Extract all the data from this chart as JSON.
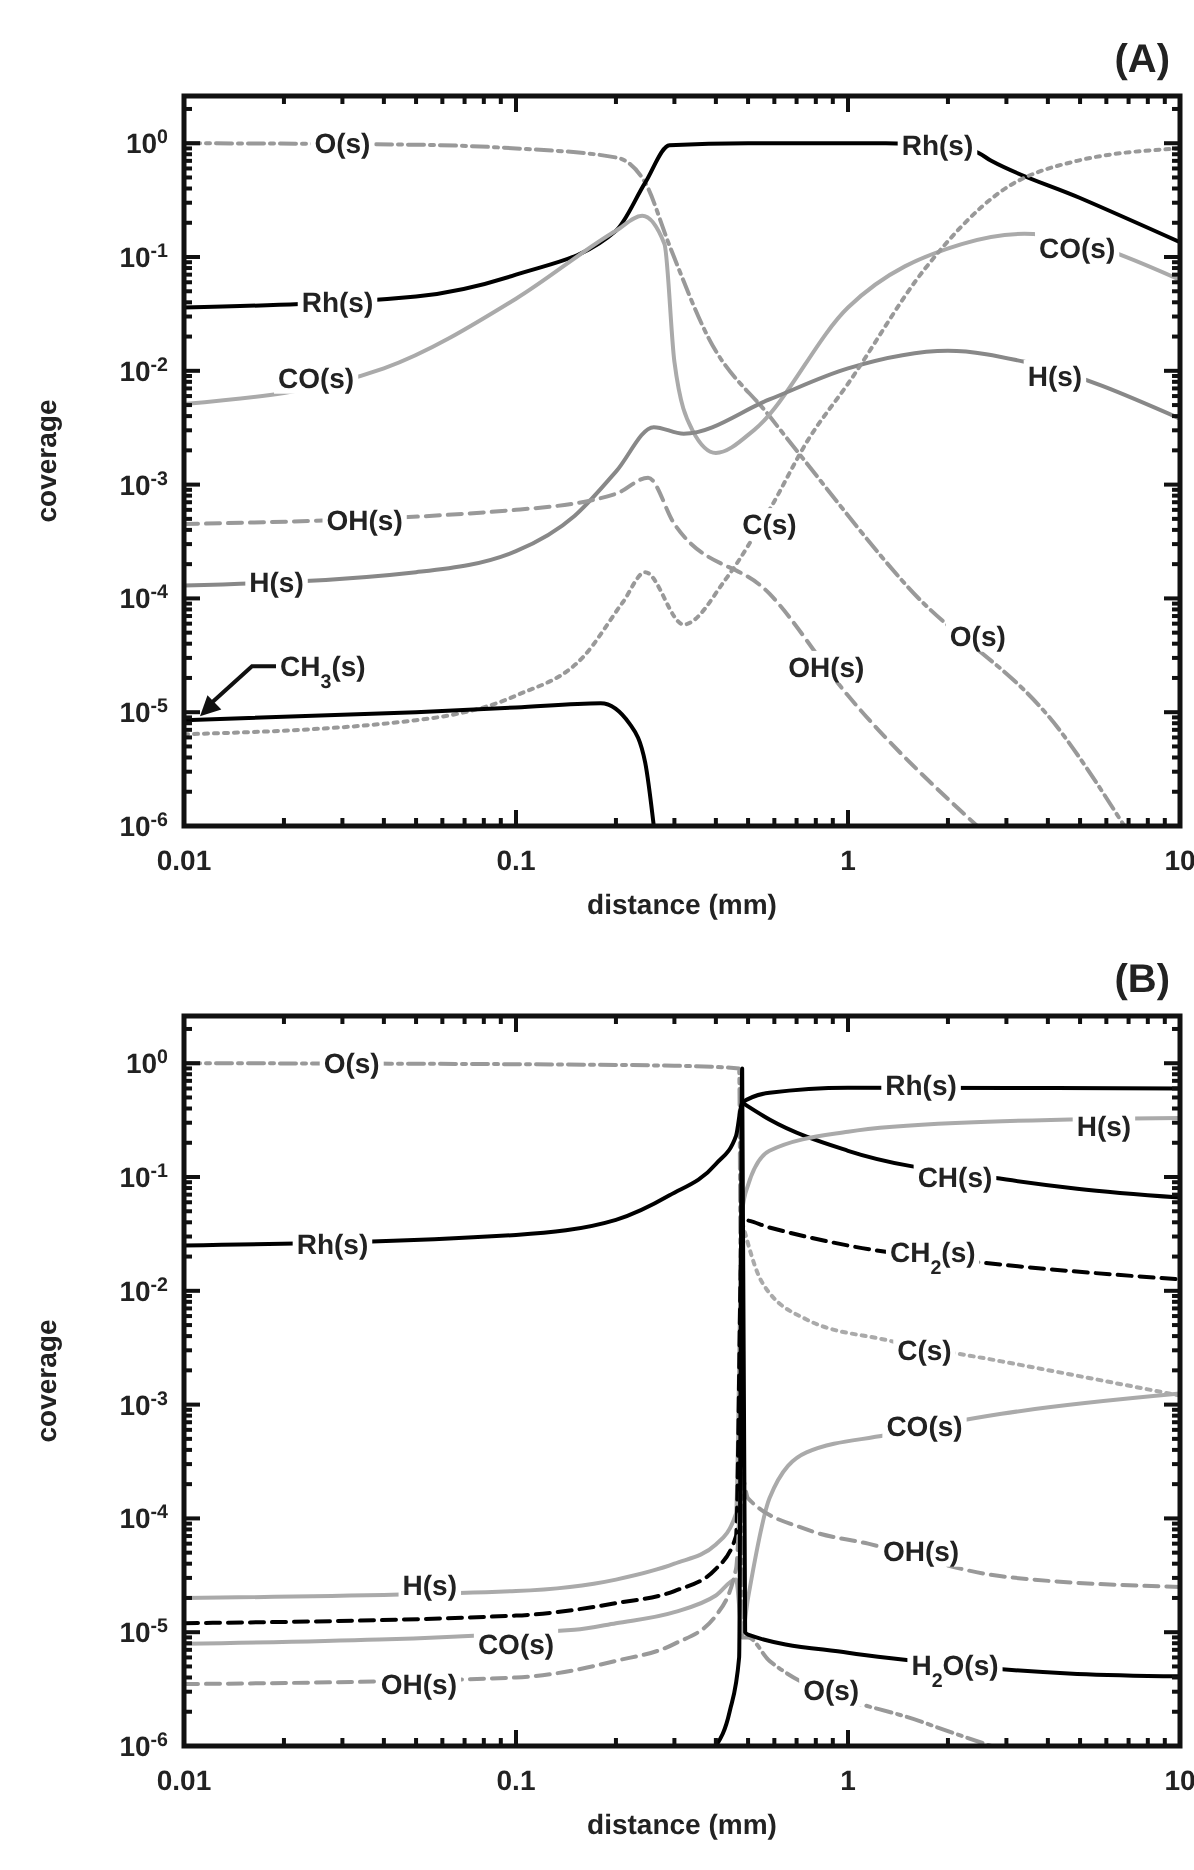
{
  "chart_data": [
    {
      "type": "line",
      "title": "(A)",
      "xlabel": "distance (mm)",
      "ylabel": "coverage",
      "log": "xy",
      "xlim": [
        0.01,
        10
      ],
      "ylim": [
        1e-06,
        2.6
      ],
      "xticks": [
        0.01,
        {
          "value": 0.02,
          "label": null
        },
        {
          "value": 0.03,
          "label": null
        },
        {
          "value": 0.04,
          "label": null
        },
        {
          "value": 0.05,
          "label": null
        },
        {
          "value": 0.06,
          "label": null
        },
        {
          "value": 0.07,
          "label": null
        },
        {
          "value": 0.08,
          "label": null
        },
        {
          "value": 0.09,
          "label": null
        },
        0.1,
        {
          "value": 0.2,
          "label": null
        },
        {
          "value": 0.3,
          "label": null
        },
        {
          "value": 0.4,
          "label": null
        },
        {
          "value": 0.5,
          "label": null
        },
        {
          "value": 0.6,
          "label": null
        },
        {
          "value": 0.7,
          "label": null
        },
        {
          "value": 0.8,
          "label": null
        },
        {
          "value": 0.9,
          "label": null
        },
        1,
        {
          "value": 2,
          "label": null
        },
        {
          "value": 3,
          "label": null
        },
        {
          "value": 4,
          "label": null
        },
        {
          "value": 5,
          "label": null
        },
        {
          "value": 6,
          "label": null
        },
        {
          "value": 7,
          "label": null
        },
        {
          "value": 8,
          "label": null
        },
        {
          "value": 9,
          "label": null
        },
        10
      ],
      "yticks": [
        {
          "value": 1e-06,
          "label": "10$^{-6}$"
        },
        {
          "value": 2e-06,
          "label": null
        },
        {
          "value": 3e-06,
          "label": null
        },
        {
          "value": 4e-06,
          "label": null
        },
        {
          "value": 5e-06,
          "label": null
        },
        {
          "value": 6e-06,
          "label": null
        },
        {
          "value": 7e-06,
          "label": null
        },
        {
          "value": 8e-06,
          "label": null
        },
        {
          "value": 9e-06,
          "label": null
        },
        {
          "value": 1e-05,
          "label": "10$^{-5}$"
        },
        {
          "value": 2e-05,
          "label": null
        },
        {
          "value": 3e-05,
          "label": null
        },
        {
          "value": 4e-05,
          "label": null
        },
        {
          "value": 5e-05,
          "label": null
        },
        {
          "value": 6e-05,
          "label": null
        },
        {
          "value": 7e-05,
          "label": null
        },
        {
          "value": 8e-05,
          "label": null
        },
        {
          "value": 9e-05,
          "label": null
        },
        {
          "value": 0.0001,
          "label": "10$^{-4}$"
        },
        {
          "value": 0.0002,
          "label": null
        },
        {
          "value": 0.0003,
          "label": null
        },
        {
          "value": 0.0004,
          "label": null
        },
        {
          "value": 0.0005,
          "label": null
        },
        {
          "value": 0.0006,
          "label": null
        },
        {
          "value": 0.0007,
          "label": null
        },
        {
          "value": 0.0008,
          "label": null
        },
        {
          "value": 0.0009,
          "label": null
        },
        {
          "value": 0.001,
          "label": "10$^{-3}$"
        },
        {
          "value": 0.002,
          "label": null
        },
        {
          "value": 0.003,
          "label": null
        },
        {
          "value": 0.004,
          "label": null
        },
        {
          "value": 0.005,
          "label": null
        },
        {
          "value": 0.006,
          "label": null
        },
        {
          "value": 0.007,
          "label": null
        },
        {
          "value": 0.008,
          "label": null
        },
        {
          "value": 0.009,
          "label": null
        },
        {
          "value": 0.01,
          "label": "10$^{-2}$"
        },
        {
          "value": 0.02,
          "label": null
        },
        {
          "value": 0.03,
          "label": null
        },
        {
          "value": 0.04,
          "label": null
        },
        {
          "value": 0.05,
          "label": null
        },
        {
          "value": 0.06,
          "label": null
        },
        {
          "value": 0.07,
          "label": null
        },
        {
          "value": 0.08,
          "label": null
        },
        {
          "value": 0.09,
          "label": null
        },
        {
          "value": 0.1,
          "label": "10$^{-1}$"
        },
        {
          "value": 0.2,
          "label": null
        },
        {
          "value": 0.3,
          "label": null
        },
        {
          "value": 0.4,
          "label": null
        },
        {
          "value": 0.5,
          "label": null
        },
        {
          "value": 0.6,
          "label": null
        },
        {
          "value": 0.7,
          "label": null
        },
        {
          "value": 0.8,
          "label": null
        },
        {
          "value": 0.9,
          "label": null
        },
        {
          "value": 1,
          "label": "10$^{0}$"
        },
        {
          "value": 2,
          "label": null
        }
      ],
      "series": [
        {
          "color": "#999999",
          "line_style": "dashdot",
          "x": [
            0.01,
            0.05,
            0.1,
            0.2,
            0.245,
            0.29,
            0.38,
            0.58,
            0.72,
            1.5,
            4.4,
            6.8
          ],
          "values": [
            1.0,
            0.97,
            0.9,
            0.75,
            0.45,
            0.126,
            0.0195,
            0.004,
            0.0018,
            0.00013,
            6.6e-06,
            1e-06
          ]
        },
        {
          "color": "#000000",
          "line_style": "solid",
          "x": [
            0.01,
            0.05,
            0.1,
            0.2,
            0.245,
            0.29,
            0.5,
            1.3,
            2.4,
            2.7,
            5,
            10
          ],
          "values": [
            0.036,
            0.045,
            0.07,
            0.17,
            0.45,
            0.96,
            1.0,
            1.0,
            0.85,
            0.7,
            0.33,
            0.135
          ]
        },
        {
          "color": "#aaaaaa",
          "line_style": "solid",
          "x": [
            0.01,
            0.04,
            0.1,
            0.2,
            0.24,
            0.28,
            0.3,
            0.34,
            0.4,
            0.52,
            1.0,
            2.2,
            3.4,
            10
          ],
          "values": [
            0.0051,
            0.0105,
            0.043,
            0.17,
            0.23,
            0.13,
            0.012,
            0.003,
            0.0019,
            0.003,
            0.036,
            0.13,
            0.16,
            0.063
          ]
        },
        {
          "color": "#888888",
          "line_style": "solid",
          "x": [
            0.01,
            0.05,
            0.1,
            0.15,
            0.2,
            0.26,
            0.32,
            0.58,
            1.0,
            2.0,
            3.4,
            10
          ],
          "values": [
            0.00013,
            0.00017,
            0.00026,
            0.00053,
            0.0013,
            0.0032,
            0.0028,
            0.0056,
            0.0105,
            0.015,
            0.012,
            0.0038
          ]
        },
        {
          "color": "#999999",
          "line_style": "dashed",
          "x": [
            0.01,
            0.1,
            0.2,
            0.25,
            0.3,
            0.58,
            1.0,
            2.45
          ],
          "values": [
            0.00045,
            0.0006,
            0.00083,
            0.00115,
            0.00045,
            0.00011,
            1.4e-05,
            1e-06
          ]
        },
        {
          "color": "#999999",
          "line_style": "dotted",
          "x": [
            0.01,
            0.05,
            0.1,
            0.16,
            0.21,
            0.245,
            0.32,
            0.43,
            0.58,
            0.76,
            1.0,
            1.7,
            2.9,
            4.9,
            10
          ],
          "values": [
            6.4e-06,
            8.5e-06,
            1.4e-05,
            3.1e-05,
            9.3e-05,
            0.00017,
            5.9e-05,
            0.00015,
            0.0006,
            0.0025,
            0.0077,
            0.078,
            0.38,
            0.7,
            0.9
          ]
        },
        {
          "name": "CH$_{3}$(s)",
          "color": "#000000",
          "line_style": "solid",
          "x": [
            0.01,
            0.05,
            0.1,
            0.18,
            0.22,
            0.245,
            0.26
          ],
          "values": [
            8.5e-06,
            1e-05,
            1.1e-05,
            1.2e-05,
            7.9e-06,
            3.6e-06,
            1e-06
          ]
        }
      ],
      "annotations": [
        {
          "text": "O(s)",
          "x": 0.03,
          "y": 1.0
        },
        {
          "text": "Rh(s)",
          "x": 1.86,
          "y": 0.97
        },
        {
          "text": "Rh(s)",
          "x": 0.029,
          "y": 0.04
        },
        {
          "text": "CO(s)",
          "x": 0.025,
          "y": 0.0087
        },
        {
          "text": "CO(s)",
          "x": 4.9,
          "y": 0.12
        },
        {
          "text": "H(s)",
          "x": 4.2,
          "y": 0.009
        },
        {
          "text": "OH(s)",
          "x": 0.035,
          "y": 0.00049
        },
        {
          "text": "H(s)",
          "x": 0.019,
          "y": 0.00014
        },
        {
          "text": "C(s)",
          "x": 0.58,
          "y": 0.00045
        },
        {
          "text": "OH(s)",
          "x": 0.86,
          "y": 2.5e-05
        },
        {
          "text": "O(s)",
          "x": 2.46,
          "y": 4.7e-05
        }
      ]
    },
    {
      "type": "line",
      "title": "(B)",
      "xlabel": "distance (mm)",
      "ylabel": "coverage",
      "log": "xy",
      "xlim": [
        0.01,
        10
      ],
      "ylim": [
        1e-06,
        2.6
      ],
      "xticks": [
        0.01,
        {
          "value": 0.02,
          "label": null
        },
        {
          "value": 0.03,
          "label": null
        },
        {
          "value": 0.04,
          "label": null
        },
        {
          "value": 0.05,
          "label": null
        },
        {
          "value": 0.06,
          "label": null
        },
        {
          "value": 0.07,
          "label": null
        },
        {
          "value": 0.08,
          "label": null
        },
        {
          "value": 0.09,
          "label": null
        },
        0.1,
        {
          "value": 0.2,
          "label": null
        },
        {
          "value": 0.3,
          "label": null
        },
        {
          "value": 0.4,
          "label": null
        },
        {
          "value": 0.5,
          "label": null
        },
        {
          "value": 0.6,
          "label": null
        },
        {
          "value": 0.7,
          "label": null
        },
        {
          "value": 0.8,
          "label": null
        },
        {
          "value": 0.9,
          "label": null
        },
        1,
        {
          "value": 2,
          "label": null
        },
        {
          "value": 3,
          "label": null
        },
        {
          "value": 4,
          "label": null
        },
        {
          "value": 5,
          "label": null
        },
        {
          "value": 6,
          "label": null
        },
        {
          "value": 7,
          "label": null
        },
        {
          "value": 8,
          "label": null
        },
        {
          "value": 9,
          "label": null
        },
        10
      ],
      "yticks": [
        {
          "value": 1e-06,
          "label": "10$^{-6}$"
        },
        {
          "value": 2e-06,
          "label": null
        },
        {
          "value": 3e-06,
          "label": null
        },
        {
          "value": 4e-06,
          "label": null
        },
        {
          "value": 5e-06,
          "label": null
        },
        {
          "value": 6e-06,
          "label": null
        },
        {
          "value": 7e-06,
          "label": null
        },
        {
          "value": 8e-06,
          "label": null
        },
        {
          "value": 9e-06,
          "label": null
        },
        {
          "value": 1e-05,
          "label": "10$^{-5}$"
        },
        {
          "value": 2e-05,
          "label": null
        },
        {
          "value": 3e-05,
          "label": null
        },
        {
          "value": 4e-05,
          "label": null
        },
        {
          "value": 5e-05,
          "label": null
        },
        {
          "value": 6e-05,
          "label": null
        },
        {
          "value": 7e-05,
          "label": null
        },
        {
          "value": 8e-05,
          "label": null
        },
        {
          "value": 9e-05,
          "label": null
        },
        {
          "value": 0.0001,
          "label": "10$^{-4}$"
        },
        {
          "value": 0.0002,
          "label": null
        },
        {
          "value": 0.0003,
          "label": null
        },
        {
          "value": 0.0004,
          "label": null
        },
        {
          "value": 0.0005,
          "label": null
        },
        {
          "value": 0.0006,
          "label": null
        },
        {
          "value": 0.0007,
          "label": null
        },
        {
          "value": 0.0008,
          "label": null
        },
        {
          "value": 0.0009,
          "label": null
        },
        {
          "value": 0.001,
          "label": "10$^{-3}$"
        },
        {
          "value": 0.002,
          "label": null
        },
        {
          "value": 0.003,
          "label": null
        },
        {
          "value": 0.004,
          "label": null
        },
        {
          "value": 0.005,
          "label": null
        },
        {
          "value": 0.006,
          "label": null
        },
        {
          "value": 0.007,
          "label": null
        },
        {
          "value": 0.008,
          "label": null
        },
        {
          "value": 0.009,
          "label": null
        },
        {
          "value": 0.01,
          "label": "10$^{-2}$"
        },
        {
          "value": 0.02,
          "label": null
        },
        {
          "value": 0.03,
          "label": null
        },
        {
          "value": 0.04,
          "label": null
        },
        {
          "value": 0.05,
          "label": null
        },
        {
          "value": 0.06,
          "label": null
        },
        {
          "value": 0.07,
          "label": null
        },
        {
          "value": 0.08,
          "label": null
        },
        {
          "value": 0.09,
          "label": null
        },
        {
          "value": 0.1,
          "label": "10$^{-1}$"
        },
        {
          "value": 0.2,
          "label": null
        },
        {
          "value": 0.3,
          "label": null
        },
        {
          "value": 0.4,
          "label": null
        },
        {
          "value": 0.5,
          "label": null
        },
        {
          "value": 0.6,
          "label": null
        },
        {
          "value": 0.7,
          "label": null
        },
        {
          "value": 0.8,
          "label": null
        },
        {
          "value": 0.9,
          "label": null
        },
        {
          "value": 1,
          "label": "10$^{0}$"
        },
        {
          "value": 2,
          "label": null
        }
      ],
      "series": [
        {
          "color": "#999999",
          "line_style": "dashdot",
          "x": [
            0.01,
            0.1,
            0.3,
            0.47,
            0.48,
            0.5,
            0.58,
            1.7,
            2.7
          ],
          "values": [
            1.0,
            0.98,
            0.95,
            0.9,
            9e-06,
            9e-06,
            5.6e-06,
            1.6e-06,
            1e-06
          ]
        },
        {
          "color": "#000000",
          "line_style": "solid",
          "x": [
            0.01,
            0.1,
            0.2,
            0.29,
            0.4,
            0.46,
            0.48,
            0.58,
            1.0,
            10
          ],
          "values": [
            0.025,
            0.031,
            0.042,
            0.069,
            0.13,
            0.23,
            0.45,
            0.55,
            0.61,
            0.6
          ]
        },
        {
          "color": "#000000",
          "line_style": "solid",
          "x": [
            0.48,
            0.58,
            1.0,
            3.0,
            4.9,
            10
          ],
          "values": [
            0.45,
            0.32,
            0.17,
            0.095,
            0.079,
            0.066
          ]
        },
        {
          "color": "#aaaaaa",
          "line_style": "solid",
          "x": [
            0.01,
            0.1,
            0.2,
            0.3,
            0.4,
            0.46,
            0.48,
            0.5,
            0.58,
            1.0,
            2.2,
            10
          ],
          "values": [
            2e-05,
            2.3e-05,
            2.9e-05,
            4e-05,
            5.9e-05,
            0.00011,
            0.05,
            0.085,
            0.17,
            0.25,
            0.3,
            0.33
          ]
        },
        {
          "color": "#000000",
          "line_style": "dashed",
          "x": [
            0.01,
            0.1,
            0.2,
            0.3,
            0.4,
            0.46,
            0.48,
            0.58,
            1.0,
            2.9,
            10
          ],
          "values": [
            1.2e-05,
            1.4e-05,
            1.8e-05,
            2.3e-05,
            3.6e-05,
            7e-05,
            0.042,
            0.036,
            0.025,
            0.017,
            0.0126
          ]
        },
        {
          "color": "#aaaaaa",
          "line_style": "dotted",
          "x": [
            0.48,
            0.55,
            0.75,
            1.3,
            2.9,
            10
          ],
          "values": [
            0.04,
            0.012,
            0.0056,
            0.0037,
            0.0024,
            0.0012
          ]
        },
        {
          "color": "#aaaaaa",
          "line_style": "solid",
          "x": [
            0.01,
            0.15,
            0.2,
            0.3,
            0.4,
            0.46,
            0.48,
            0.5,
            0.58,
            0.75,
            1.3,
            2.9,
            10
          ],
          "values": [
            7.9e-06,
            1.05e-05,
            1.2e-05,
            1.5e-05,
            2.1e-05,
            2.9e-05,
            1e-05,
            2e-05,
            0.00015,
            0.00038,
            0.00054,
            0.00083,
            0.00125
          ]
        },
        {
          "color": "#999999",
          "line_style": "dashed",
          "x": [
            0.01,
            0.1,
            0.2,
            0.3,
            0.4,
            0.46,
            0.48,
            0.5,
            0.75,
            1.15,
            2.9,
            10
          ],
          "values": [
            3.5e-06,
            4e-06,
            5.6e-06,
            7.9e-06,
            1.4e-05,
            3.6e-05,
            0.00023,
            0.00015,
            8e-05,
            6e-05,
            3.1e-05,
            2.5e-05
          ]
        },
        {
          "color": "#000000",
          "line_style": "solid",
          "x": [
            0.4,
            0.44,
            0.47,
            0.48,
            0.49,
            0.5,
            1.0,
            1.35,
            4.9,
            10
          ],
          "values": [
            1e-06,
            2e-06,
            6e-06,
            0.9,
            1e-05,
            9.5e-06,
            6.6e-06,
            5.9e-06,
            4.3e-06,
            4.1e-06
          ]
        }
      ],
      "annotations": [
        {
          "text": "O(s)",
          "x": 0.032,
          "y": 1.0
        },
        {
          "text": "Rh(s)",
          "x": 0.028,
          "y": 0.026
        },
        {
          "text": "Rh(s)",
          "x": 1.66,
          "y": 0.64
        },
        {
          "text": "H(s)",
          "x": 5.9,
          "y": 0.28
        },
        {
          "text": "CH(s)",
          "x": 2.1,
          "y": 0.1
        },
        {
          "text": "CH$_{2}$(s)",
          "x": 1.8,
          "y": 0.022
        },
        {
          "text": "C(s)",
          "x": 1.7,
          "y": 0.003
        },
        {
          "text": "CO(s)",
          "x": 1.7,
          "y": 0.00065
        },
        {
          "text": "OH(s)",
          "x": 1.66,
          "y": 5.2e-05
        },
        {
          "text": "H$_{2}$O(s)",
          "x": 2.1,
          "y": 5.2e-06
        },
        {
          "text": "O(s)",
          "x": 0.89,
          "y": 3.1e-06
        },
        {
          "text": "H(s)",
          "x": 0.055,
          "y": 2.6e-05
        },
        {
          "text": "CO(s)",
          "x": 0.1,
          "y": 7.9e-06
        },
        {
          "text": "OH(s)",
          "x": 0.051,
          "y": 3.5e-06
        }
      ]
    }
  ]
}
